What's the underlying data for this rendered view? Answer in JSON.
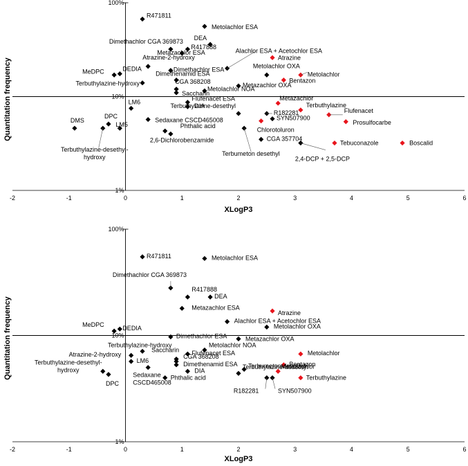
{
  "chart_data": [
    {
      "type": "scatter",
      "xlabel": "XLogP3",
      "ylabel": "Quantitation frequency",
      "xlim": [
        -2,
        6
      ],
      "ylim": [
        1,
        100
      ],
      "y_scale": "log",
      "x_ticks": [
        "-2",
        "-1",
        "0",
        "1",
        "2",
        "3",
        "4",
        "5",
        "6"
      ],
      "y_ticks": [
        "1%",
        "10%",
        "100%"
      ],
      "reference_lines": {
        "x": 0,
        "y": 10
      },
      "colors": {
        "black": "#000000",
        "red": "#e8141c"
      },
      "points": [
        {
          "label": "R471811",
          "x": 0.3,
          "y": 67,
          "color": "black"
        },
        {
          "label": "Metolachlor ESA",
          "x": 1.4,
          "y": 56,
          "color": "black"
        },
        {
          "label": "DEA",
          "x": 1.5,
          "y": 36,
          "color": "black"
        },
        {
          "label": "Dimethachlor CGA 369873",
          "x": 0.8,
          "y": 32,
          "color": "black"
        },
        {
          "label": "R417888",
          "x": 1.1,
          "y": 32,
          "color": "black"
        },
        {
          "label": "Metazachlor ESA",
          "x": 1.0,
          "y": 29,
          "color": "black"
        },
        {
          "label": "Alachlor ESA + Acetochlor ESA",
          "x": 1.8,
          "y": 20,
          "color": "black"
        },
        {
          "label": "Atrazine",
          "x": 2.6,
          "y": 26,
          "color": "red"
        },
        {
          "label": "Atrazine-2-hydroxy",
          "x": 0.4,
          "y": 21,
          "color": "black"
        },
        {
          "label": "MeDPC",
          "x": -0.2,
          "y": 17,
          "color": "black"
        },
        {
          "label": "DEDIA",
          "x": -0.1,
          "y": 17.5,
          "color": "black"
        },
        {
          "label": "Dimethachlor ESA",
          "x": 0.8,
          "y": 19,
          "color": "black"
        },
        {
          "label": "Metolachlor OXA",
          "x": 2.5,
          "y": 17,
          "color": "black"
        },
        {
          "label": "Metolachlor",
          "x": 3.1,
          "y": 17,
          "color": "red"
        },
        {
          "label": "Bentazon",
          "x": 2.8,
          "y": 15,
          "color": "red"
        },
        {
          "label": "Dimethenamid ESA",
          "x": 0.9,
          "y": 15,
          "color": "black"
        },
        {
          "label": "Terbuthylazine-hydroxy",
          "x": 0.3,
          "y": 14,
          "color": "black"
        },
        {
          "label": "Metazachlor OXA",
          "x": 2.0,
          "y": 13,
          "color": "black"
        },
        {
          "label": "CGA 368208",
          "x": 0.9,
          "y": 12,
          "color": "black"
        },
        {
          "label": "Metolachlor NOA",
          "x": 1.4,
          "y": 11.5,
          "color": "black"
        },
        {
          "label": "Saccharin",
          "x": 0.9,
          "y": 11,
          "color": "black"
        },
        {
          "label": "Metazachlor",
          "x": 2.7,
          "y": 8.5,
          "color": "red"
        },
        {
          "label": "Flufenacet ESA",
          "x": 1.1,
          "y": 8.7,
          "color": "black"
        },
        {
          "label": "LM6",
          "x": 0.1,
          "y": 7.5,
          "color": "black"
        },
        {
          "label": "DIA",
          "x": 1.1,
          "y": 7.8,
          "color": "black"
        },
        {
          "label": "Terbuthylazine",
          "x": 3.1,
          "y": 7.2,
          "color": "red"
        },
        {
          "label": "R182281",
          "x": 2.5,
          "y": 6.6,
          "color": "black"
        },
        {
          "label": "Terbuthylazine-desethyl",
          "x": 2.0,
          "y": 6.6,
          "color": "black"
        },
        {
          "label": "Flufenacet",
          "x": 3.6,
          "y": 6.4,
          "color": "red"
        },
        {
          "label": "SYN507900",
          "x": 2.6,
          "y": 5.8,
          "color": "black"
        },
        {
          "label": "Sedaxane CSCD465008",
          "x": 0.4,
          "y": 5.7,
          "color": "black"
        },
        {
          "label": "Chlorotoluron",
          "x": 2.4,
          "y": 5.5,
          "color": "red"
        },
        {
          "label": "Prosulfocarbe",
          "x": 3.9,
          "y": 5.4,
          "color": "red"
        },
        {
          "label": "DMS",
          "x": -0.9,
          "y": 4.6,
          "color": "black"
        },
        {
          "label": "DPC",
          "x": -0.3,
          "y": 5.1,
          "color": "black"
        },
        {
          "label": "LM5",
          "x": -0.1,
          "y": 4.6,
          "color": "black"
        },
        {
          "label": "Terbuthylazine-desethyl-hydroxy",
          "x": -0.4,
          "y": 4.6,
          "color": "black"
        },
        {
          "label": "Terbumeton desethyl",
          "x": 2.1,
          "y": 4.6,
          "color": "black"
        },
        {
          "label": "Phthalic acid",
          "x": 0.7,
          "y": 4.3,
          "color": "black"
        },
        {
          "label": "2,6-Dichlorobenzamide",
          "x": 0.8,
          "y": 4.0,
          "color": "black"
        },
        {
          "label": "CGA 357704",
          "x": 2.4,
          "y": 3.5,
          "color": "black"
        },
        {
          "label": "2,4-DCP + 2,5-DCP",
          "x": 3.1,
          "y": 3.2,
          "color": "black"
        },
        {
          "label": "Tebuconazole",
          "x": 3.7,
          "y": 3.2,
          "color": "red"
        },
        {
          "label": "Boscalid",
          "x": 4.9,
          "y": 3.2,
          "color": "red"
        }
      ]
    },
    {
      "type": "scatter",
      "xlabel": "XLogP3",
      "ylabel": "Quantitation frequency",
      "xlim": [
        -2,
        6
      ],
      "ylim": [
        1,
        100
      ],
      "y_scale": "log",
      "x_ticks": [
        "-2",
        "-1",
        "0",
        "1",
        "2",
        "3",
        "4",
        "5",
        "6"
      ],
      "y_ticks": [
        "1%",
        "10%",
        "100%"
      ],
      "reference_lines": {
        "x": 0,
        "y": 10
      },
      "colors": {
        "black": "#000000",
        "red": "#e8141c"
      },
      "points": [
        {
          "label": "R471811",
          "x": 0.3,
          "y": 55,
          "color": "black"
        },
        {
          "label": "Metolachlor ESA",
          "x": 1.4,
          "y": 53,
          "color": "black"
        },
        {
          "label": "Dimethachlor CGA 369873",
          "x": 0.8,
          "y": 28,
          "color": "black"
        },
        {
          "label": "R417888",
          "x": 1.1,
          "y": 23,
          "color": "black"
        },
        {
          "label": "DEA",
          "x": 1.5,
          "y": 23,
          "color": "black"
        },
        {
          "label": "Metazachlor ESA",
          "x": 1.0,
          "y": 18,
          "color": "black"
        },
        {
          "label": "Atrazine",
          "x": 2.6,
          "y": 17,
          "color": "red"
        },
        {
          "label": "Alachlor ESA + Acetochlor ESA",
          "x": 1.8,
          "y": 13.5,
          "color": "black"
        },
        {
          "label": "Metolachlor OXA",
          "x": 2.5,
          "y": 12,
          "color": "black"
        },
        {
          "label": "MeDPC",
          "x": -0.2,
          "y": 11,
          "color": "black"
        },
        {
          "label": "DEDIA",
          "x": -0.1,
          "y": 11.5,
          "color": "black"
        },
        {
          "label": "Dimethachlor ESA",
          "x": 0.8,
          "y": 9.7,
          "color": "black"
        },
        {
          "label": "Metazachlor OXA",
          "x": 2.0,
          "y": 9.3,
          "color": "black"
        },
        {
          "label": "Terbuthylazine-hydroxy",
          "x": 0.3,
          "y": 7.1,
          "color": "black"
        },
        {
          "label": "Metolachlor NOA",
          "x": 1.4,
          "y": 7.3,
          "color": "black"
        },
        {
          "label": "Metolachlor",
          "x": 3.1,
          "y": 6.7,
          "color": "red"
        },
        {
          "label": "Atrazine-2-hydroxy",
          "x": 0.1,
          "y": 6.5,
          "color": "black"
        },
        {
          "label": "Flufenacet ESA",
          "x": 1.1,
          "y": 6.7,
          "color": "black"
        },
        {
          "label": "Saccharin",
          "x": 0.9,
          "y": 6.0,
          "color": "black"
        },
        {
          "label": "LM6",
          "x": 0.1,
          "y": 5.7,
          "color": "black"
        },
        {
          "label": "CGA 368208",
          "x": 0.9,
          "y": 5.7,
          "color": "black"
        },
        {
          "label": "Dimethenamid ESA",
          "x": 0.9,
          "y": 5.3,
          "color": "black"
        },
        {
          "label": "Bentazon",
          "x": 2.8,
          "y": 5.3,
          "color": "red"
        },
        {
          "label": "Sedaxane CSCD465008",
          "x": 0.4,
          "y": 5.0,
          "color": "black"
        },
        {
          "label": "Terbumeton desethyl",
          "x": 2.1,
          "y": 4.8,
          "color": "black"
        },
        {
          "label": "Metazachlor",
          "x": 2.7,
          "y": 4.6,
          "color": "red"
        },
        {
          "label": "Terbuthylazine-desethyl-hydroxy",
          "x": -0.4,
          "y": 4.6,
          "color": "black"
        },
        {
          "label": "DPC",
          "x": -0.3,
          "y": 4.3,
          "color": "black"
        },
        {
          "label": "DIA",
          "x": 1.1,
          "y": 4.6,
          "color": "black"
        },
        {
          "label": "Terbuthylazine-desethyl",
          "x": 2.0,
          "y": 4.4,
          "color": "black"
        },
        {
          "label": "Phthalic acid",
          "x": 0.7,
          "y": 4.0,
          "color": "black"
        },
        {
          "label": "R182281",
          "x": 2.5,
          "y": 4.0,
          "color": "black"
        },
        {
          "label": "SYN507900",
          "x": 2.6,
          "y": 4.0,
          "color": "black"
        },
        {
          "label": "Terbuthylazine",
          "x": 3.1,
          "y": 4.0,
          "color": "red"
        }
      ]
    }
  ]
}
